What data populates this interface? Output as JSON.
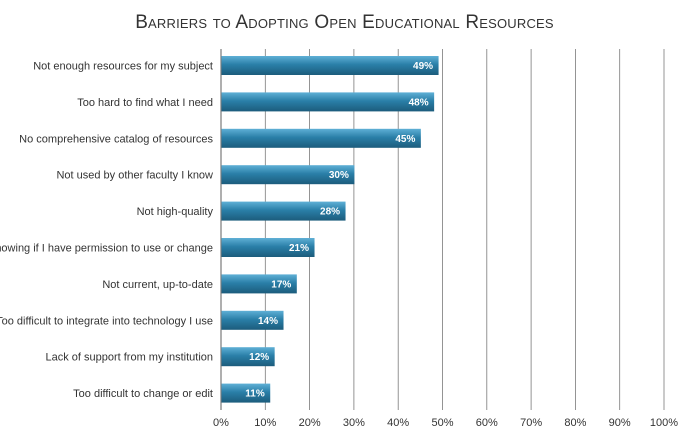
{
  "chart_data": {
    "type": "bar",
    "orientation": "horizontal",
    "title": "Barriers to Adopting Open Educational Resources",
    "categories": [
      "Not enough resources for my subject",
      "Too hard to find what I need",
      "No comprehensive catalog of resources",
      "Not used by other faculty I know",
      "Not high-quality",
      "Not knowing if I have permission to use or change",
      "Not current, up-to-date",
      "Too difficult to integrate into technology I use",
      "Lack of support from my institution",
      "Too difficult to change or edit"
    ],
    "values": [
      49,
      48,
      45,
      30,
      28,
      21,
      17,
      14,
      12,
      11
    ],
    "data_labels": [
      "49%",
      "48%",
      "45%",
      "30%",
      "28%",
      "21%",
      "17%",
      "14%",
      "12%",
      "11%"
    ],
    "xlim": [
      0,
      100
    ],
    "xticks": [
      0,
      10,
      20,
      30,
      40,
      50,
      60,
      70,
      80,
      90,
      100
    ],
    "xtick_labels": [
      "0%",
      "10%",
      "20%",
      "30%",
      "40%",
      "50%",
      "60%",
      "70%",
      "80%",
      "90%",
      "100%"
    ],
    "grid": "vertical",
    "legend": "none",
    "colors": {
      "bar": "#2a7fa8",
      "bar_highlight": "#5fb0d6",
      "bar_shadow": "#1c5c7c",
      "grid": "#7a7a7a",
      "text": "#333333"
    }
  }
}
